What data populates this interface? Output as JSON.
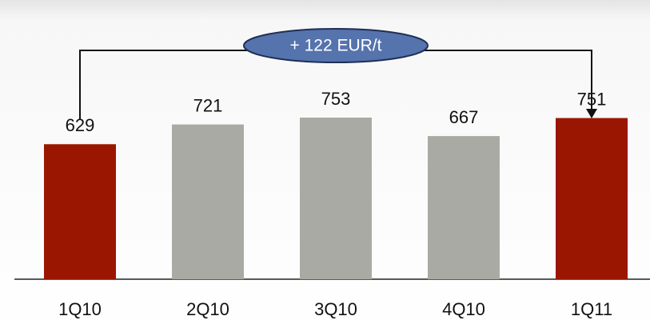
{
  "chart_data": {
    "type": "bar",
    "categories": [
      "1Q10",
      "2Q10",
      "3Q10",
      "4Q10",
      "1Q11"
    ],
    "values": [
      629,
      721,
      753,
      667,
      751
    ],
    "colors": [
      "#9b1600",
      "#aaaaa5",
      "#aaaaa5",
      "#aaaaa5",
      "#9b1600"
    ],
    "annotation": "+ 122 EUR/t"
  }
}
